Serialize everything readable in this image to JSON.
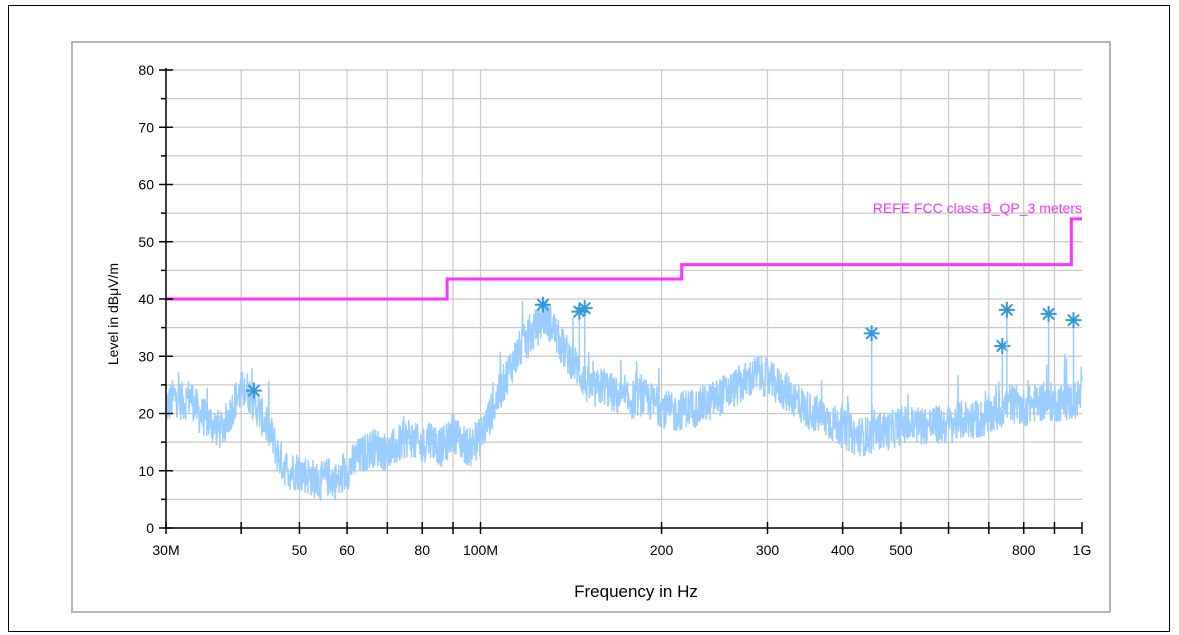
{
  "chart_data": {
    "type": "line",
    "title": "",
    "xlabel": "Frequency in Hz",
    "ylabel": "Level in dBμV/m",
    "x_scale": "log",
    "xlim": [
      30000000,
      1000000000
    ],
    "ylim": [
      0,
      80
    ],
    "grid": true,
    "x_tick_labels": [
      {
        "value": 30000000,
        "label": "30M"
      },
      {
        "value": 50000000,
        "label": "50"
      },
      {
        "value": 60000000,
        "label": "60"
      },
      {
        "value": 80000000,
        "label": "80"
      },
      {
        "value": 100000000,
        "label": "100M"
      },
      {
        "value": 200000000,
        "label": "200"
      },
      {
        "value": 300000000,
        "label": "300"
      },
      {
        "value": 400000000,
        "label": "400"
      },
      {
        "value": 500000000,
        "label": "500"
      },
      {
        "value": 800000000,
        "label": "800"
      },
      {
        "value": 1000000000,
        "label": "1G"
      }
    ],
    "y_ticks": [
      0,
      10,
      20,
      30,
      40,
      50,
      60,
      70,
      80
    ],
    "limit_line": {
      "name": "REFE FCC class B_QP_3 meters",
      "color": "#ff33ff",
      "steps": [
        {
          "x_start": 30000000,
          "x_end": 88000000,
          "y": 40.0
        },
        {
          "x_start": 88000000,
          "x_end": 216000000,
          "y": 43.5
        },
        {
          "x_start": 216000000,
          "x_end": 960000000,
          "y": 46.0
        },
        {
          "x_start": 960000000,
          "x_end": 1000000000,
          "y": 54.0
        }
      ]
    },
    "trace": {
      "color": "#99ccff",
      "points": [
        [
          30000000,
          21
        ],
        [
          31000000,
          23
        ],
        [
          32000000,
          22
        ],
        [
          33000000,
          23
        ],
        [
          34000000,
          20
        ],
        [
          35000000,
          19
        ],
        [
          36000000,
          18
        ],
        [
          37000000,
          17
        ],
        [
          38000000,
          19
        ],
        [
          39000000,
          22
        ],
        [
          40000000,
          24
        ],
        [
          41000000,
          24
        ],
        [
          42000000,
          22
        ],
        [
          43000000,
          20
        ],
        [
          44000000,
          18
        ],
        [
          45000000,
          16
        ],
        [
          46000000,
          13
        ],
        [
          47000000,
          11
        ],
        [
          48000000,
          10
        ],
        [
          50000000,
          10
        ],
        [
          52000000,
          9
        ],
        [
          54000000,
          8
        ],
        [
          56000000,
          9
        ],
        [
          58000000,
          8
        ],
        [
          60000000,
          10
        ],
        [
          62000000,
          12
        ],
        [
          64000000,
          13
        ],
        [
          66000000,
          14
        ],
        [
          68000000,
          14
        ],
        [
          70000000,
          13
        ],
        [
          72000000,
          14
        ],
        [
          74000000,
          15
        ],
        [
          76000000,
          16
        ],
        [
          78000000,
          15
        ],
        [
          80000000,
          14
        ],
        [
          82000000,
          16
        ],
        [
          84000000,
          15
        ],
        [
          86000000,
          14
        ],
        [
          88000000,
          15
        ],
        [
          90000000,
          17
        ],
        [
          93000000,
          15
        ],
        [
          96000000,
          14
        ],
        [
          100000000,
          16
        ],
        [
          104000000,
          20
        ],
        [
          108000000,
          24
        ],
        [
          112000000,
          28
        ],
        [
          116000000,
          31
        ],
        [
          120000000,
          33
        ],
        [
          124000000,
          35
        ],
        [
          128000000,
          37
        ],
        [
          132000000,
          35
        ],
        [
          136000000,
          32
        ],
        [
          140000000,
          30
        ],
        [
          145000000,
          28
        ],
        [
          150000000,
          25
        ],
        [
          155000000,
          24
        ],
        [
          160000000,
          25
        ],
        [
          168000000,
          23
        ],
        [
          176000000,
          22
        ],
        [
          184000000,
          23
        ],
        [
          192000000,
          22
        ],
        [
          200000000,
          21
        ],
        [
          210000000,
          20
        ],
        [
          220000000,
          21
        ],
        [
          230000000,
          21
        ],
        [
          240000000,
          22
        ],
        [
          250000000,
          23
        ],
        [
          260000000,
          24
        ],
        [
          270000000,
          25
        ],
        [
          280000000,
          26
        ],
        [
          290000000,
          27
        ],
        [
          300000000,
          26
        ],
        [
          310000000,
          25
        ],
        [
          320000000,
          24
        ],
        [
          330000000,
          23
        ],
        [
          345000000,
          21
        ],
        [
          360000000,
          20
        ],
        [
          375000000,
          19
        ],
        [
          390000000,
          18
        ],
        [
          405000000,
          17
        ],
        [
          420000000,
          16
        ],
        [
          440000000,
          16
        ],
        [
          460000000,
          17
        ],
        [
          480000000,
          17
        ],
        [
          500000000,
          18
        ],
        [
          530000000,
          18
        ],
        [
          560000000,
          18
        ],
        [
          600000000,
          18
        ],
        [
          640000000,
          19
        ],
        [
          680000000,
          19
        ],
        [
          720000000,
          20
        ],
        [
          760000000,
          22
        ],
        [
          800000000,
          21
        ],
        [
          840000000,
          22
        ],
        [
          880000000,
          22
        ],
        [
          920000000,
          22
        ],
        [
          960000000,
          22
        ],
        [
          1000000000,
          23
        ]
      ]
    },
    "markers": [
      {
        "x": 42000000,
        "y": 24
      },
      {
        "x": 127000000,
        "y": 39
      },
      {
        "x": 146000000,
        "y": 37.8
      },
      {
        "x": 149000000,
        "y": 38.4
      },
      {
        "x": 447000000,
        "y": 34
      },
      {
        "x": 737000000,
        "y": 31.8
      },
      {
        "x": 750000000,
        "y": 38.1
      },
      {
        "x": 880000000,
        "y": 37.4
      },
      {
        "x": 968000000,
        "y": 36.3
      }
    ],
    "marker_color": "#3399dd"
  }
}
